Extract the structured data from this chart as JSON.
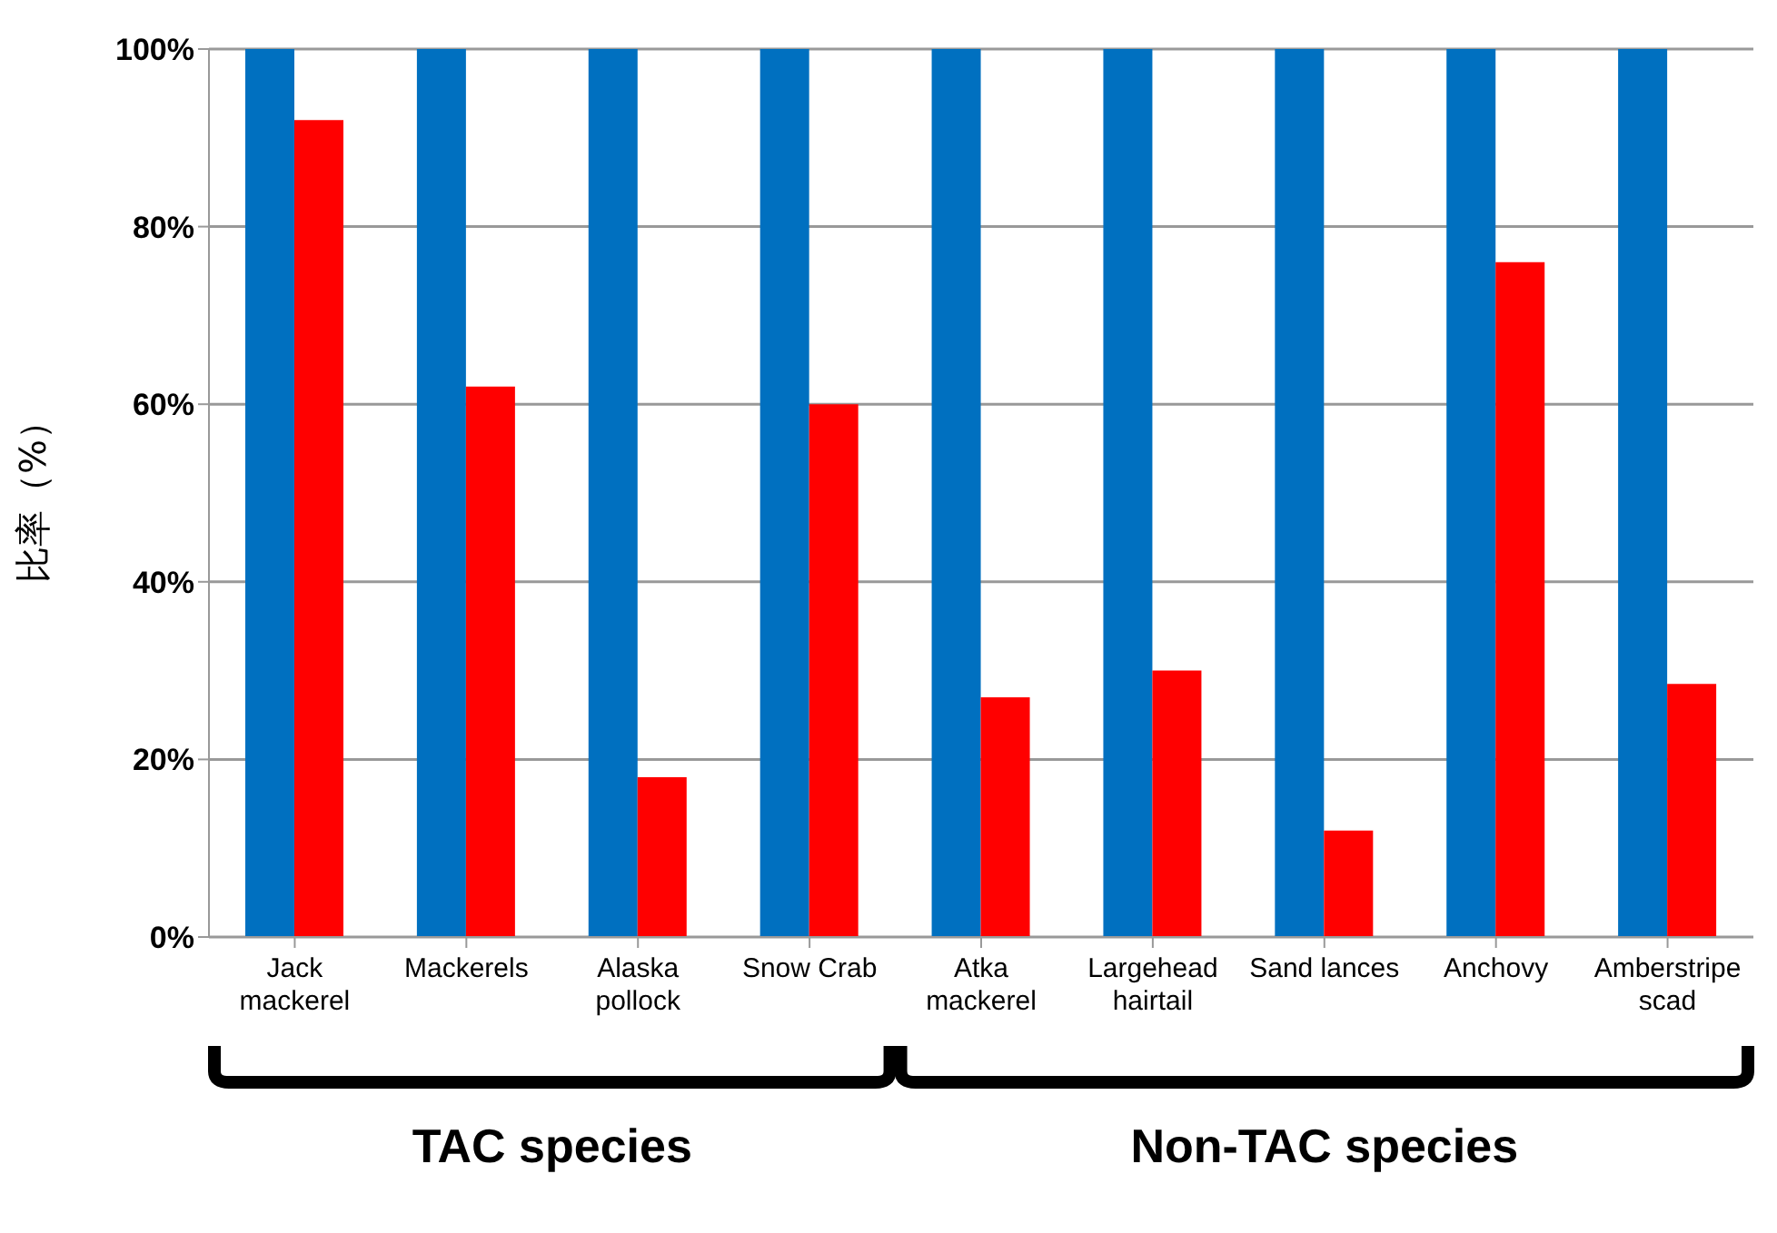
{
  "chart_data": {
    "type": "bar",
    "ylabel": "比率（%）",
    "categories": [
      "Jack mackerel",
      "Mackerels",
      "Alaska pollock",
      "Snow Crab",
      "Atka mackerel",
      "Largehead hairtail",
      "Sand lances",
      "Anchovy",
      "Amberstripe scad"
    ],
    "series": [
      {
        "color": "#0070c0",
        "values": [
          100,
          100,
          100,
          100,
          100,
          100,
          100,
          100,
          100
        ]
      },
      {
        "color": "#ff0000",
        "values": [
          92,
          62,
          18,
          60,
          27,
          30,
          12,
          76,
          28.5
        ]
      }
    ],
    "ylim": [
      0,
      100
    ],
    "yticks": [
      {
        "value": 0,
        "label": "0%"
      },
      {
        "value": 20,
        "label": "20%"
      },
      {
        "value": 40,
        "label": "40%"
      },
      {
        "value": 60,
        "label": "60%"
      },
      {
        "value": 80,
        "label": "80%"
      },
      {
        "value": 100,
        "label": "100%"
      }
    ],
    "grid": "y",
    "legend": false,
    "annotations": [
      "TAC species",
      "Non-TAC species"
    ]
  }
}
